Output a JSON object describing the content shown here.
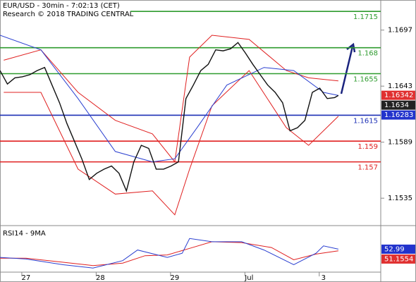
{
  "chart_data": [
    {
      "type": "line",
      "title": "EUR/USD - 30min - 7:02:13 (CET)",
      "subtitle": "Research © 2018 TRADING CENTRAL",
      "xlim": [
        -0.35,
        4.77
      ],
      "ylim": [
        1.1512,
        1.1726
      ],
      "yticks": [
        1.1697,
        1.1643,
        1.1589,
        1.1535
      ],
      "levels": [
        {
          "value": 1.1715,
          "color": "#2e9b2e"
        },
        {
          "value": 1.168,
          "color": "#2e9b2e"
        },
        {
          "value": 1.1655,
          "color": "#2e9b2e"
        },
        {
          "value": 1.1615,
          "color": "#1c2fb5"
        },
        {
          "value": 1.159,
          "color": "#e02020"
        },
        {
          "value": 1.157,
          "color": "#e02020"
        }
      ],
      "price_tags": [
        {
          "value": 1.16342,
          "color": "#e03030"
        },
        {
          "value": 1.1634,
          "color": "#222222"
        },
        {
          "value": 1.16283,
          "color": "#2233cc"
        }
      ],
      "series": [
        {
          "color": "#e02020",
          "width": 1,
          "x": [
            -0.3,
            0.2,
            0.7,
            1.2,
            1.7,
            2.0,
            2.2,
            2.5,
            3.0,
            3.5,
            3.8,
            4.2
          ],
          "values": [
            1.1668,
            1.1678,
            1.1637,
            1.161,
            1.1597,
            1.157,
            1.1671,
            1.1692,
            1.1688,
            1.1658,
            1.1651,
            1.1648
          ]
        },
        {
          "color": "#e02020",
          "width": 1,
          "x": [
            -0.3,
            0.2,
            0.7,
            1.2,
            1.7,
            2.0,
            2.2,
            2.5,
            3.0,
            3.5,
            3.8,
            4.2
          ],
          "values": [
            1.1637,
            1.1637,
            1.1563,
            1.1539,
            1.1542,
            1.1519,
            1.1563,
            1.1624,
            1.1658,
            1.1603,
            1.1586,
            1.1614
          ]
        },
        {
          "color": "#2a3fd0",
          "width": 1,
          "x": [
            -0.35,
            0.2,
            0.7,
            1.2,
            1.7,
            2.0,
            2.3,
            2.7,
            3.2,
            3.6,
            4.0,
            4.2
          ],
          "values": [
            1.1692,
            1.1678,
            1.1631,
            1.158,
            1.157,
            1.1573,
            1.1603,
            1.1644,
            1.1661,
            1.1658,
            1.1637,
            1.1634
          ]
        },
        {
          "color": "#111111",
          "width": 1.4,
          "x": [
            -0.35,
            -0.25,
            -0.15,
            -0.05,
            0.05,
            0.15,
            0.25,
            0.35,
            0.45,
            0.55,
            0.65,
            0.75,
            0.85,
            0.95,
            1.05,
            1.15,
            1.25,
            1.35,
            1.45,
            1.55,
            1.65,
            1.75,
            1.85,
            1.95,
            2.05,
            2.15,
            2.25,
            2.35,
            2.45,
            2.55,
            2.65,
            2.75,
            2.85,
            2.95,
            3.05,
            3.15,
            3.25,
            3.35,
            3.45,
            3.55,
            3.65,
            3.75,
            3.85,
            3.95,
            4.05,
            4.15,
            4.2
          ],
          "values": [
            1.1658,
            1.1645,
            1.1651,
            1.1652,
            1.1654,
            1.1658,
            1.1661,
            1.1644,
            1.1627,
            1.1607,
            1.159,
            1.1573,
            1.1553,
            1.1559,
            1.1563,
            1.1566,
            1.1559,
            1.1542,
            1.157,
            1.1586,
            1.1583,
            1.1563,
            1.1563,
            1.1566,
            1.157,
            1.1631,
            1.1644,
            1.1658,
            1.1664,
            1.1678,
            1.1677,
            1.1679,
            1.1685,
            1.1675,
            1.1664,
            1.1654,
            1.1644,
            1.1637,
            1.1627,
            1.16,
            1.1603,
            1.161,
            1.1637,
            1.1641,
            1.1631,
            1.1632,
            1.1634
          ]
        }
      ]
    },
    {
      "type": "line",
      "title": "RSI14 - 9MA",
      "xlim": [
        -0.35,
        4.77
      ],
      "ylim": [
        25,
        80
      ],
      "xticks": [
        {
          "value": 0,
          "label": "27"
        },
        {
          "value": 1,
          "label": "28"
        },
        {
          "value": 2,
          "label": "29"
        },
        {
          "value": 3,
          "label": "Jul"
        },
        {
          "value": 4,
          "label": "3"
        }
      ],
      "value_tags": [
        {
          "value": 52.99,
          "color": "#2233cc"
        },
        {
          "value": 51.1554,
          "color": "#e03030"
        }
      ],
      "series": [
        {
          "color": "#e02020",
          "width": 1,
          "x": [
            -0.35,
            0.0,
            0.5,
            0.9,
            1.3,
            1.6,
            1.9,
            2.2,
            2.5,
            2.9,
            3.3,
            3.6,
            3.9,
            4.2
          ],
          "values": [
            42,
            42,
            37,
            33,
            36,
            45,
            46,
            54,
            62,
            61,
            55,
            40,
            47,
            51
          ]
        },
        {
          "color": "#2a3fd0",
          "width": 1,
          "x": [
            -0.35,
            0.0,
            0.5,
            0.9,
            1.3,
            1.5,
            1.9,
            2.1,
            2.2,
            2.5,
            2.9,
            3.2,
            3.6,
            3.9,
            4.0,
            4.2
          ],
          "values": [
            43,
            41,
            34,
            30,
            39,
            52,
            43,
            48,
            66,
            62,
            62,
            52,
            34,
            48,
            57,
            53
          ]
        }
      ]
    }
  ]
}
